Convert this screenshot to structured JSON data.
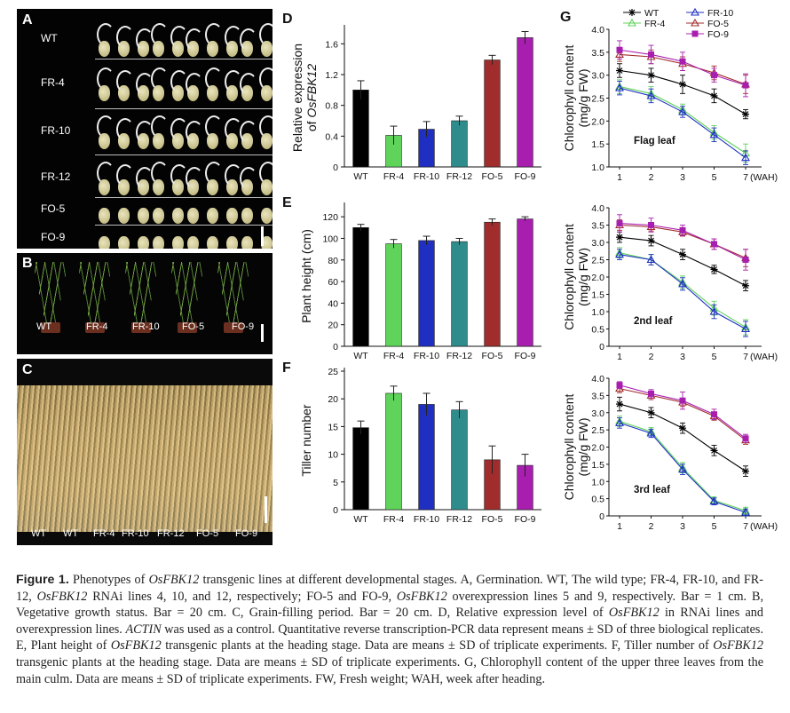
{
  "panels": {
    "A": {
      "letter": "A",
      "rows": [
        "WT",
        "FR-4",
        "FR-10",
        "FR-12",
        "FO-5",
        "FO-9"
      ]
    },
    "B": {
      "letter": "B",
      "labels": [
        "WT",
        "FR-4",
        "FR-10",
        "FO-5",
        "FO-9"
      ]
    },
    "C": {
      "letter": "C",
      "labels": [
        "WT",
        "WT",
        "FR-4",
        "FR-10",
        "FR-12",
        "FO-5",
        "FO-9"
      ]
    },
    "G": {
      "letter": "G"
    }
  },
  "colors": {
    "WT": "#000000",
    "FR-4": "#5fd35a",
    "FR-10": "#1f2fc2",
    "FR-12": "#2f8c8c",
    "FO-5": "#a12c2c",
    "FO-9": "#a81fb0"
  },
  "chart_data": [
    {
      "panel": "D",
      "type": "bar",
      "categories": [
        "WT",
        "FR-4",
        "FR-10",
        "FR-12",
        "FO-5",
        "FO-9"
      ],
      "values": [
        1.0,
        0.41,
        0.49,
        0.6,
        1.39,
        1.68
      ],
      "errors": [
        0.12,
        0.12,
        0.1,
        0.06,
        0.06,
        0.08
      ],
      "ylabel_lines": [
        "Relative expression",
        "of "
      ],
      "ylabel_italic": "OsFBK12",
      "ylim": [
        0,
        1.8
      ],
      "yticks": [
        "0",
        "0.4",
        "0.8",
        "1.2",
        "1.6"
      ],
      "ytick_values": [
        0,
        0.4,
        0.8,
        1.2,
        1.6
      ]
    },
    {
      "panel": "E",
      "type": "bar",
      "categories": [
        "WT",
        "FR-4",
        "FR-10",
        "FR-12",
        "FO-5",
        "FO-9"
      ],
      "values": [
        110,
        95,
        98,
        97,
        115,
        118
      ],
      "errors": [
        3,
        4,
        4,
        3,
        3,
        2
      ],
      "ylabel": "Plant height (cm)",
      "ylim": [
        0,
        130
      ],
      "yticks": [
        "0",
        "20",
        "40",
        "60",
        "80",
        "100",
        "120"
      ],
      "ytick_values": [
        0,
        20,
        40,
        60,
        80,
        100,
        120
      ]
    },
    {
      "panel": "F",
      "type": "bar",
      "categories": [
        "WT",
        "FR-4",
        "FR-10",
        "FR-12",
        "FO-5",
        "FO-9"
      ],
      "values": [
        14.8,
        21,
        19,
        18,
        9,
        8
      ],
      "errors": [
        1.2,
        1.3,
        2,
        1.5,
        2.5,
        2
      ],
      "ylabel": "Tiller number",
      "ylim": [
        0,
        25
      ],
      "yticks": [
        "0",
        "5",
        "10",
        "15",
        "20",
        "25"
      ],
      "ytick_values": [
        0,
        5,
        10,
        15,
        20,
        25
      ]
    },
    {
      "panel": "G-flag",
      "type": "line",
      "x": [
        "1",
        "2",
        "3",
        "5",
        "7"
      ],
      "xunit": "(WAH)",
      "ylabel_lines": [
        "Chlorophyll content",
        "(mg/g FW)"
      ],
      "ylim": [
        1.0,
        4.0
      ],
      "yticks": [
        "1.0",
        "1.5",
        "2.0",
        "2.5",
        "3.0",
        "3.5",
        "4.0"
      ],
      "ytick_values": [
        1.0,
        1.5,
        2.0,
        2.5,
        3.0,
        3.5,
        4.0
      ],
      "annotation": "Flag leaf",
      "series": [
        {
          "name": "WT",
          "values": [
            3.1,
            3.0,
            2.8,
            2.55,
            2.15
          ],
          "errors": [
            0.15,
            0.15,
            0.2,
            0.15,
            0.1
          ]
        },
        {
          "name": "FR-4",
          "values": [
            2.75,
            2.6,
            2.25,
            1.75,
            1.3
          ],
          "errors": [
            0.15,
            0.15,
            0.12,
            0.15,
            0.2
          ]
        },
        {
          "name": "FR-10",
          "values": [
            2.72,
            2.55,
            2.2,
            1.7,
            1.2
          ],
          "errors": [
            0.15,
            0.15,
            0.12,
            0.15,
            0.15
          ]
        },
        {
          "name": "FO-5",
          "values": [
            3.45,
            3.4,
            3.25,
            3.05,
            2.8
          ],
          "errors": [
            0.15,
            0.15,
            0.15,
            0.15,
            0.2
          ]
        },
        {
          "name": "FO-9",
          "values": [
            3.55,
            3.45,
            3.3,
            3.0,
            2.78
          ],
          "errors": [
            0.2,
            0.2,
            0.2,
            0.15,
            0.25
          ]
        }
      ]
    },
    {
      "panel": "G-2nd",
      "type": "line",
      "x": [
        "1",
        "2",
        "3",
        "5",
        "7"
      ],
      "xunit": "(WAH)",
      "ylabel_lines": [
        "Chlorophyll content",
        "(mg/g FW)"
      ],
      "ylim": [
        0,
        4.0
      ],
      "yticks": [
        "0",
        "0.5",
        "1.0",
        "1.5",
        "2.0",
        "2.5",
        "3.0",
        "3.5",
        "4.0"
      ],
      "ytick_values": [
        0,
        0.5,
        1.0,
        1.5,
        2.0,
        2.5,
        3.0,
        3.5,
        4.0
      ],
      "annotation": "2nd leaf",
      "series": [
        {
          "name": "WT",
          "values": [
            3.15,
            3.05,
            2.65,
            2.22,
            1.75
          ],
          "errors": [
            0.15,
            0.15,
            0.15,
            0.12,
            0.15
          ]
        },
        {
          "name": "FR-4",
          "values": [
            2.7,
            2.5,
            1.85,
            1.1,
            0.55
          ],
          "errors": [
            0.15,
            0.15,
            0.18,
            0.2,
            0.22
          ]
        },
        {
          "name": "FR-10",
          "values": [
            2.65,
            2.5,
            1.8,
            1.0,
            0.5
          ],
          "errors": [
            0.15,
            0.15,
            0.18,
            0.2,
            0.22
          ]
        },
        {
          "name": "FO-5",
          "values": [
            3.5,
            3.45,
            3.3,
            2.95,
            2.55
          ],
          "errors": [
            0.15,
            0.12,
            0.12,
            0.15,
            0.25
          ]
        },
        {
          "name": "FO-9",
          "values": [
            3.55,
            3.5,
            3.35,
            2.95,
            2.5
          ],
          "errors": [
            0.25,
            0.2,
            0.15,
            0.15,
            0.3
          ]
        }
      ]
    },
    {
      "panel": "G-3rd",
      "type": "line",
      "x": [
        "1",
        "2",
        "3",
        "5",
        "7"
      ],
      "xunit": "(WAH)",
      "ylabel_lines": [
        "Chlorophyll content",
        "(mg/g FW)"
      ],
      "ylim": [
        0,
        4.0
      ],
      "yticks": [
        "0",
        "0.5",
        "1.0",
        "1.5",
        "2.0",
        "2.5",
        "3.0",
        "3.5",
        "4.0"
      ],
      "ytick_values": [
        0,
        0.5,
        1.0,
        1.5,
        2.0,
        2.5,
        3.0,
        3.5,
        4.0
      ],
      "annotation": "3rd leaf",
      "series": [
        {
          "name": "WT",
          "values": [
            3.25,
            3.0,
            2.55,
            1.9,
            1.3
          ],
          "errors": [
            0.2,
            0.15,
            0.15,
            0.15,
            0.15
          ]
        },
        {
          "name": "FR-4",
          "values": [
            2.75,
            2.45,
            1.4,
            0.45,
            0.15
          ],
          "errors": [
            0.15,
            0.12,
            0.15,
            0.1,
            0.1
          ]
        },
        {
          "name": "FR-10",
          "values": [
            2.7,
            2.4,
            1.35,
            0.42,
            0.1
          ],
          "errors": [
            0.15,
            0.12,
            0.15,
            0.1,
            0.1
          ]
        },
        {
          "name": "FO-5",
          "values": [
            3.7,
            3.5,
            3.3,
            2.9,
            2.2
          ],
          "errors": [
            0.12,
            0.12,
            0.12,
            0.12,
            0.12
          ]
        },
        {
          "name": "FO-9",
          "values": [
            3.8,
            3.55,
            3.35,
            2.95,
            2.25
          ],
          "errors": [
            0.1,
            0.12,
            0.25,
            0.15,
            0.12
          ]
        }
      ]
    }
  ],
  "legend": {
    "placement": "top",
    "items": [
      {
        "name": "WT",
        "marker": "asterisk"
      },
      {
        "name": "FR-4",
        "marker": "triangle-open"
      },
      {
        "name": "FR-10",
        "marker": "triangle-open"
      },
      {
        "name": "FO-5",
        "marker": "triangle-open"
      },
      {
        "name": "FO-9",
        "marker": "square-filled"
      }
    ]
  },
  "caption": {
    "figure_label": "Figure 1.",
    "segments": [
      {
        "t": "  Phenotypes of "
      },
      {
        "t": "OsFBK12",
        "i": true
      },
      {
        "t": " transgenic lines at different developmental stages. A, Germination. WT, The wild type; FR-4, FR-10, and FR-12, "
      },
      {
        "t": "OsFBK12",
        "i": true
      },
      {
        "t": " RNAi lines 4, 10, and 12, respectively; FO-5 and FO-9, "
      },
      {
        "t": "OsFBK12",
        "i": true
      },
      {
        "t": " overexpression lines 5 and 9, respectively. Bar = 1 cm. B, Vegetative growth status. Bar = 20 cm. C, Grain-filling period. Bar = 20 cm. D, Relative expression level of "
      },
      {
        "t": "OsFBK12",
        "i": true
      },
      {
        "t": " in RNAi lines and overexpression lines. "
      },
      {
        "t": "ACTIN",
        "i": true
      },
      {
        "t": " was used as a control. Quantitative reverse transcription-PCR data represent means ± SD of three biological replicates. E, Plant height of "
      },
      {
        "t": "OsFBK12",
        "i": true
      },
      {
        "t": " transgenic plants at the heading stage. Data are means ± SD of triplicate experiments. F, Tiller number of "
      },
      {
        "t": "OsFBK12",
        "i": true
      },
      {
        "t": " transgenic plants at the heading stage. Data are means ± SD of triplicate experiments. G, Chlorophyll content of the upper three leaves from the main culm. Data are means ± SD of triplicate experiments. FW, Fresh weight; WAH, week after heading."
      }
    ]
  }
}
